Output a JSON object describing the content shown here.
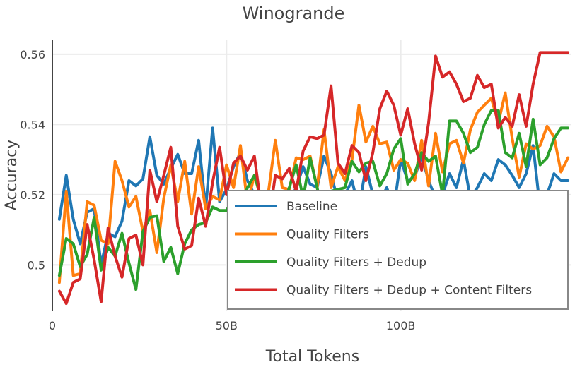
{
  "chart_data": {
    "type": "line",
    "title": "Winogrande",
    "xlabel": "Total Tokens",
    "ylabel": "Accuracy",
    "xlim": [
      0,
      149
    ],
    "ylim": [
      0.487,
      0.564
    ],
    "grid": true,
    "legend_position": "bottom-right",
    "x_ticks": [
      {
        "value": 0,
        "label": "0"
      },
      {
        "value": 50,
        "label": "50B"
      },
      {
        "value": 100,
        "label": "100B"
      }
    ],
    "y_ticks": [
      {
        "value": 0.5,
        "label": "0.5"
      },
      {
        "value": 0.52,
        "label": "0.52"
      },
      {
        "value": 0.54,
        "label": "0.54"
      },
      {
        "value": 0.56,
        "label": "0.56"
      }
    ],
    "x": [
      2,
      4,
      6,
      8,
      10,
      12,
      14,
      16,
      18,
      20,
      22,
      24,
      26,
      28,
      30,
      32,
      34,
      36,
      38,
      40,
      42,
      44,
      46,
      48,
      50,
      52,
      54,
      56,
      58,
      60,
      62,
      64,
      66,
      68,
      70,
      72,
      74,
      76,
      78,
      80,
      82,
      84,
      86,
      88,
      90,
      92,
      94,
      96,
      98,
      100,
      102,
      104,
      106,
      108,
      110,
      112,
      114,
      116,
      118,
      120,
      122,
      124,
      126,
      128,
      130,
      132,
      134,
      136,
      138,
      140,
      142,
      144,
      146,
      148
    ],
    "series": [
      {
        "name": "Baseline",
        "color": "#1f77b4",
        "values": [
          0.513,
          0.5255,
          0.513,
          0.506,
          0.515,
          0.516,
          0.5,
          0.509,
          0.508,
          0.5125,
          0.524,
          0.5225,
          0.5245,
          0.5365,
          0.5255,
          0.523,
          0.5275,
          0.5315,
          0.526,
          0.526,
          0.5355,
          0.516,
          0.539,
          0.518,
          0.5215,
          0.528,
          0.532,
          0.524,
          0.52,
          0.518,
          0.516,
          0.52,
          0.515,
          0.518,
          0.522,
          0.528,
          0.523,
          0.522,
          0.531,
          0.526,
          0.518,
          0.52,
          0.524,
          0.516,
          0.528,
          0.52,
          0.518,
          0.522,
          0.516,
          0.53,
          0.524,
          0.525,
          0.531,
          0.524,
          0.519,
          0.52,
          0.526,
          0.522,
          0.53,
          0.519,
          0.522,
          0.526,
          0.524,
          0.53,
          0.5285,
          0.5255,
          0.522,
          0.526,
          0.534,
          0.516,
          0.52,
          0.526,
          0.524,
          0.524
        ]
      },
      {
        "name": "Quality Filters",
        "color": "#ff7f0e",
        "values": [
          0.495,
          0.521,
          0.497,
          0.4975,
          0.518,
          0.517,
          0.507,
          0.506,
          0.5295,
          0.524,
          0.5165,
          0.5195,
          0.5095,
          0.5155,
          0.5035,
          0.519,
          0.5285,
          0.518,
          0.5295,
          0.5145,
          0.528,
          0.516,
          0.5195,
          0.5185,
          0.5285,
          0.522,
          0.534,
          0.5175,
          0.5255,
          0.5185,
          0.5205,
          0.5355,
          0.522,
          0.5215,
          0.5305,
          0.53,
          0.531,
          0.522,
          0.5385,
          0.522,
          0.528,
          0.524,
          0.53,
          0.5455,
          0.535,
          0.5395,
          0.5345,
          0.535,
          0.527,
          0.53,
          0.529,
          0.524,
          0.5355,
          0.5225,
          0.5375,
          0.5265,
          0.5345,
          0.5355,
          0.529,
          0.5385,
          0.5435,
          0.5455,
          0.5475,
          0.5405,
          0.549,
          0.536,
          0.525,
          0.5345,
          0.533,
          0.534,
          0.5395,
          0.5365,
          0.5265,
          0.5305
        ]
      },
      {
        "name": "Quality Filters + Dedup",
        "color": "#2ca02c",
        "values": [
          0.497,
          0.5075,
          0.506,
          0.4995,
          0.503,
          0.5135,
          0.4985,
          0.505,
          0.5025,
          0.509,
          0.5005,
          0.493,
          0.5095,
          0.5135,
          0.514,
          0.501,
          0.505,
          0.4975,
          0.506,
          0.51,
          0.5115,
          0.512,
          0.5165,
          0.5155,
          0.5155,
          0.519,
          0.516,
          0.522,
          0.5255,
          0.519,
          0.518,
          0.5135,
          0.516,
          0.522,
          0.5285,
          0.519,
          0.5305,
          0.522,
          0.5135,
          0.521,
          0.5215,
          0.522,
          0.5295,
          0.5265,
          0.529,
          0.5295,
          0.5225,
          0.526,
          0.533,
          0.536,
          0.523,
          0.526,
          0.532,
          0.5295,
          0.531,
          0.52,
          0.541,
          0.541,
          0.5375,
          0.532,
          0.5335,
          0.54,
          0.544,
          0.544,
          0.532,
          0.5305,
          0.5375,
          0.528,
          0.5415,
          0.5285,
          0.5305,
          0.536,
          0.539,
          0.539
        ]
      },
      {
        "name": "Quality Filters + Dedup + Content Filters",
        "color": "#d62728",
        "values": [
          0.4925,
          0.489,
          0.495,
          0.496,
          0.5115,
          0.5015,
          0.4895,
          0.5105,
          0.5025,
          0.4965,
          0.5075,
          0.5085,
          0.5,
          0.527,
          0.518,
          0.5255,
          0.5335,
          0.511,
          0.5045,
          0.5055,
          0.519,
          0.511,
          0.5235,
          0.5335,
          0.52,
          0.529,
          0.531,
          0.527,
          0.531,
          0.516,
          0.5115,
          0.5255,
          0.5245,
          0.5275,
          0.521,
          0.5325,
          0.5365,
          0.536,
          0.537,
          0.551,
          0.529,
          0.526,
          0.534,
          0.532,
          0.524,
          0.532,
          0.5445,
          0.5495,
          0.5455,
          0.537,
          0.5445,
          0.5345,
          0.527,
          0.5405,
          0.5595,
          0.5535,
          0.555,
          0.5515,
          0.5465,
          0.5475,
          0.554,
          0.5505,
          0.5515,
          0.539,
          0.542,
          0.5395,
          0.5485,
          0.5395,
          0.5515,
          0.5605,
          0.5605,
          0.5605,
          0.5605,
          0.5605
        ]
      }
    ]
  }
}
